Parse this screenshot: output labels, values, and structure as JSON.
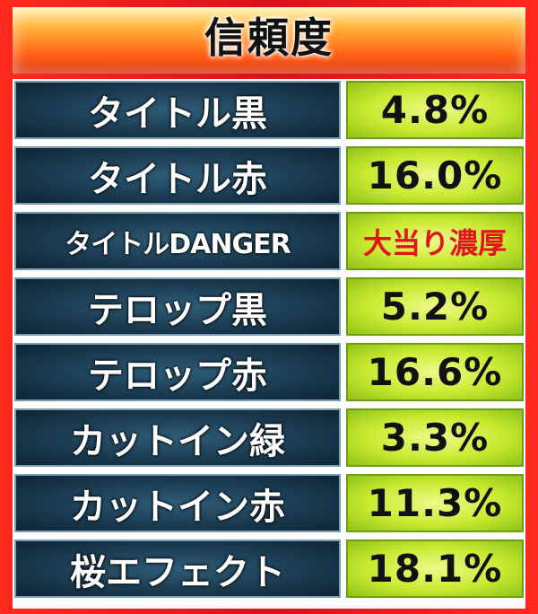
{
  "header": {
    "title": "信頼度"
  },
  "rows": [
    {
      "label": "タイトル黒",
      "value": "4.8%"
    },
    {
      "label": "タイトル赤",
      "value": "16.0%"
    },
    {
      "label": "タイトルDANGER",
      "value": "大当り濃厚"
    },
    {
      "label": "テロップ黒",
      "value": "5.2%"
    },
    {
      "label": "テロップ赤",
      "value": "16.6%"
    },
    {
      "label": "カットイン緑",
      "value": "3.3%"
    },
    {
      "label": "カットイン赤",
      "value": "11.3%"
    },
    {
      "label": "桜エフェクト",
      "value": "18.1%"
    }
  ],
  "colors": {
    "frame": "#e0151b",
    "label_bg": "#1b3c52",
    "value_bg": "#c8ea2f",
    "special_text": "#e0151b"
  }
}
